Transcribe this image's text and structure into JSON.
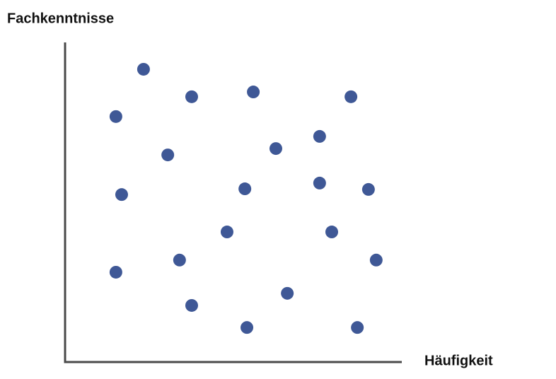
{
  "chart_data": {
    "type": "scatter",
    "x_label": "Häufigkeit",
    "y_label": "Fachkenntnisse",
    "xlim": [
      0,
      100
    ],
    "ylim": [
      0,
      100
    ],
    "color": "#3f5896",
    "x": [
      23.3,
      37.6,
      55.9,
      84.9,
      15.1,
      75.6,
      62.6,
      30.5,
      16.8,
      53.4,
      75.6,
      90.1,
      48.1,
      79.2,
      34.0,
      92.4,
      15.1,
      66.0,
      37.6,
      54.0,
      86.8
    ],
    "values": [
      91.6,
      83.0,
      84.5,
      83.0,
      76.8,
      70.6,
      66.8,
      64.8,
      52.4,
      54.2,
      56.0,
      54.0,
      40.7,
      40.7,
      31.9,
      31.9,
      28.1,
      21.5,
      17.7,
      10.8,
      10.8
    ]
  }
}
